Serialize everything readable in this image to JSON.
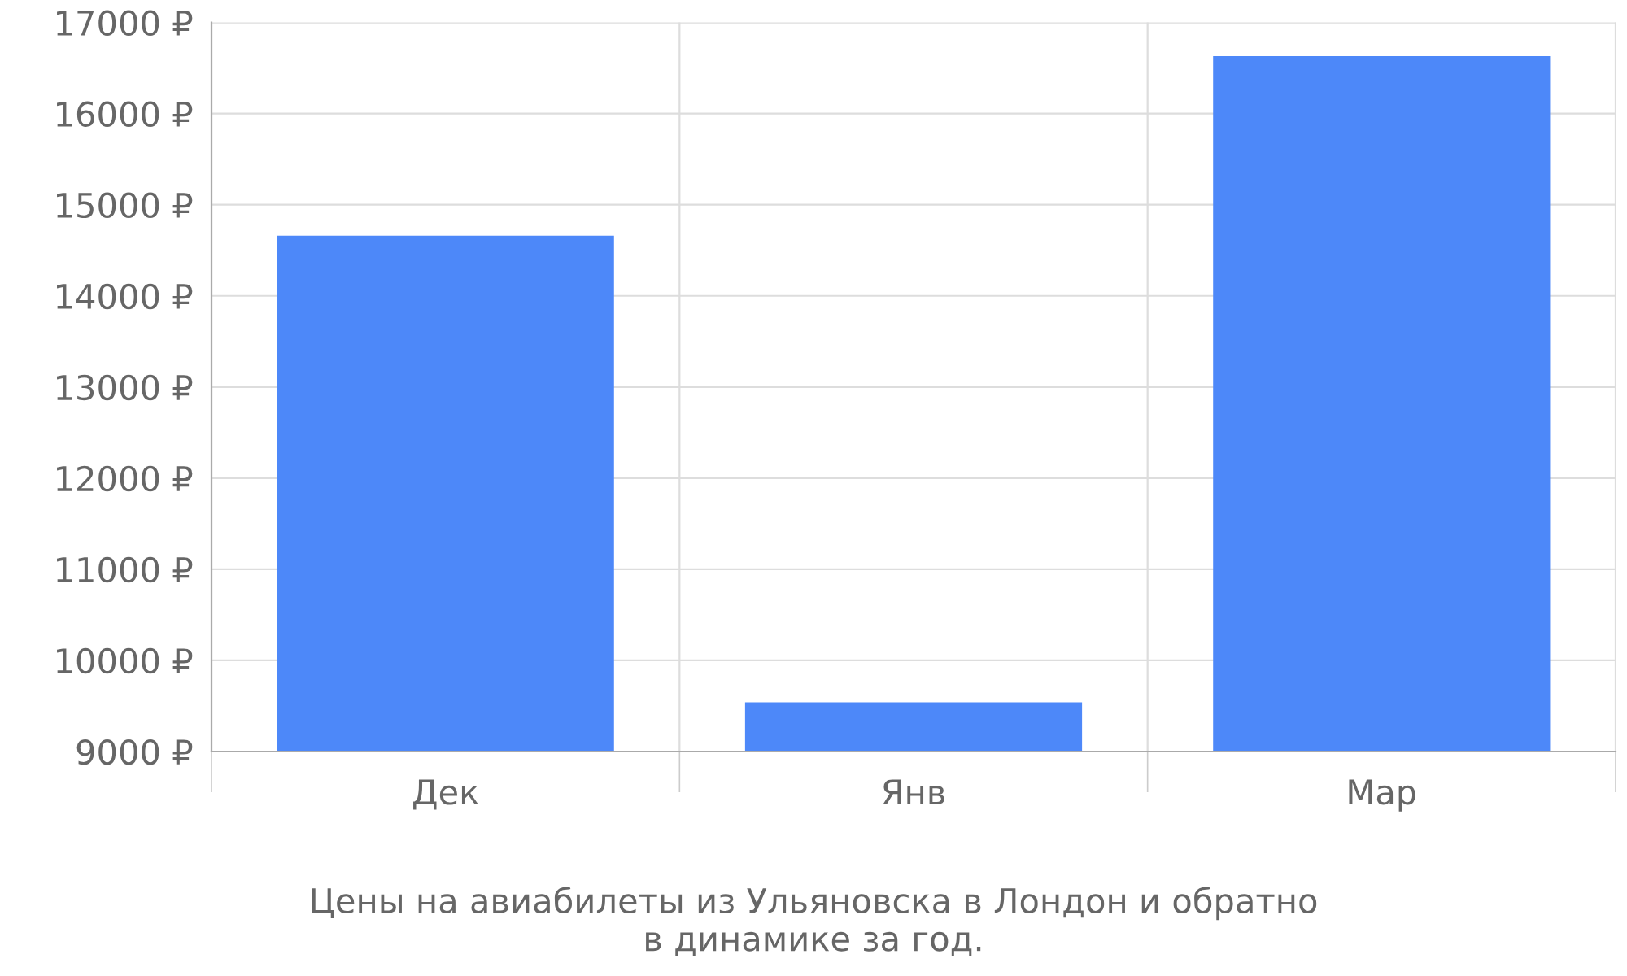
{
  "chart_data": {
    "type": "bar",
    "categories": [
      "Дек",
      "Янв",
      "Мар"
    ],
    "series": [
      {
        "color": "#4d88f9",
        "values": [
          14660,
          9540,
          16630
        ]
      }
    ],
    "ylim": [
      9000,
      17000
    ],
    "yticks": [
      {
        "value": 9000,
        "label": "9000 ₽"
      },
      {
        "value": 10000,
        "label": "10000 ₽"
      },
      {
        "value": 11000,
        "label": "11000 ₽"
      },
      {
        "value": 12000,
        "label": "12000 ₽"
      },
      {
        "value": 13000,
        "label": "13000 ₽"
      },
      {
        "value": 14000,
        "label": "14000 ₽"
      },
      {
        "value": 15000,
        "label": "15000 ₽"
      },
      {
        "value": 16000,
        "label": "16000 ₽"
      },
      {
        "value": 17000,
        "label": "17000 ₽"
      }
    ],
    "grid": true,
    "annotations": [
      "Цены на авиабилеты из Ульяновска в Лондон и обратно\nв динамике за год."
    ]
  }
}
